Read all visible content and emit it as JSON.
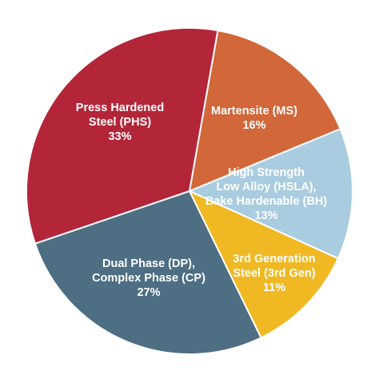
{
  "chart_data": {
    "type": "pie",
    "slices": [
      {
        "lines": [
          "Martensite (MS)",
          "16%"
        ],
        "value": 16,
        "color": "#D2673A",
        "text_color": "#ffffff"
      },
      {
        "lines": [
          "High Strength",
          "Low Alloy (HSLA),",
          "Bake Hardenable (BH)",
          "13%"
        ],
        "value": 13,
        "color": "#A9CCE0",
        "text_color": "#ffffff"
      },
      {
        "lines": [
          "3rd Generation",
          "Steel (3rd Gen)",
          "11%"
        ],
        "value": 11,
        "color": "#F0B923",
        "text_color": "#ffffff"
      },
      {
        "lines": [
          "Dual Phase (DP),",
          "Complex Phase (CP)",
          "27%"
        ],
        "value": 27,
        "color": "#4D6E83",
        "text_color": "#ffffff"
      },
      {
        "lines": [
          "Press Hardened",
          "Steel (PHS)",
          "33%"
        ],
        "value": 33,
        "color": "#B3263A",
        "text_color": "#ffffff"
      }
    ]
  }
}
